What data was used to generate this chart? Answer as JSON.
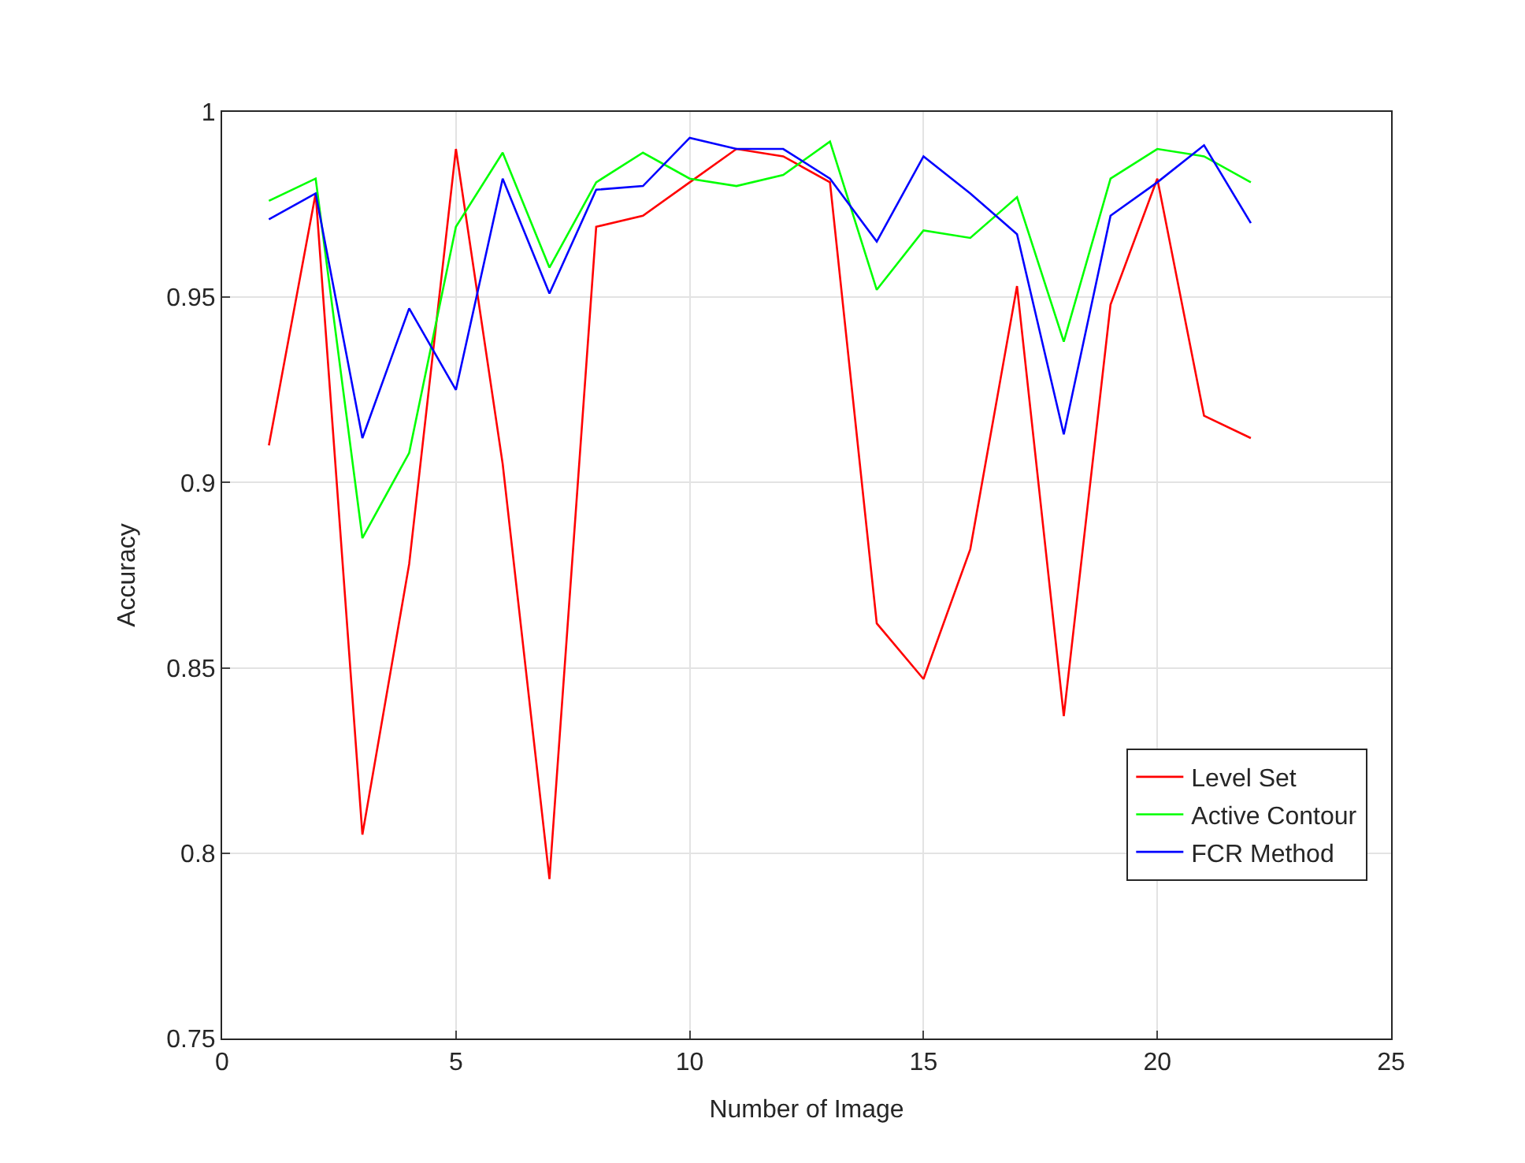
{
  "chart_data": {
    "type": "line",
    "xlabel": "Number of Image",
    "ylabel": "Accuracy",
    "x": [
      1,
      2,
      3,
      4,
      5,
      6,
      7,
      8,
      9,
      10,
      11,
      12,
      13,
      14,
      15,
      16,
      17,
      18,
      19,
      20,
      21,
      22
    ],
    "series": [
      {
        "name": "Level Set",
        "color": "#ff0000",
        "values": [
          0.91,
          0.978,
          0.805,
          0.878,
          0.99,
          0.905,
          0.793,
          0.969,
          0.972,
          0.981,
          0.99,
          0.988,
          0.981,
          0.862,
          0.847,
          0.882,
          0.953,
          0.837,
          0.948,
          0.982,
          0.918,
          0.912
        ]
      },
      {
        "name": "Active Contour",
        "color": "#00ff00",
        "values": [
          0.976,
          0.982,
          0.885,
          0.908,
          0.969,
          0.989,
          0.958,
          0.981,
          0.989,
          0.982,
          0.98,
          0.983,
          0.992,
          0.952,
          0.968,
          0.966,
          0.977,
          0.938,
          0.982,
          0.99,
          0.988,
          0.981
        ]
      },
      {
        "name": "FCR Method",
        "color": "#0000ff",
        "values": [
          0.971,
          0.978,
          0.912,
          0.947,
          0.925,
          0.982,
          0.951,
          0.979,
          0.98,
          0.993,
          0.99,
          0.99,
          0.982,
          0.965,
          0.988,
          0.978,
          0.967,
          0.913,
          0.972,
          0.981,
          0.991,
          0.97
        ]
      }
    ],
    "xlim": [
      0,
      25
    ],
    "xticks": [
      0,
      5,
      10,
      15,
      20,
      25
    ],
    "ylim": [
      0.75,
      1
    ],
    "yticks": [
      0.75,
      0.8,
      0.85,
      0.9,
      0.95,
      1
    ],
    "grid": true,
    "legend": "bottom right",
    "line_style": "solid",
    "marker": "none"
  }
}
